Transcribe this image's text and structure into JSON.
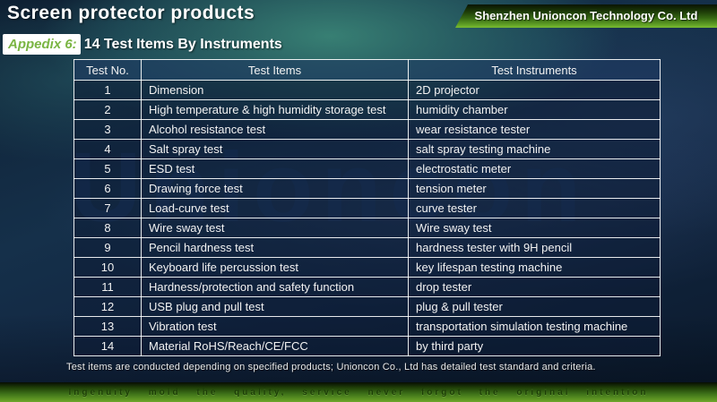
{
  "slide": {
    "title": "Screen protector products",
    "company_banner": "Shenzhen Unioncon Technology Co. Ltd",
    "appendix_label": "Appedix 6:",
    "section_title": "14 Test Items By Instruments",
    "watermark": "Unioncon",
    "note": "Test items are conducted depending on specified products; Unioncon Co., Ltd has detailed test standard and criteria.",
    "footer_slogan": "Ingenuity mold the quality, service never forgot the original intention"
  },
  "table": {
    "headers": [
      "Test No.",
      "Test Items",
      "Test Instruments"
    ],
    "rows": [
      [
        "1",
        "Dimension",
        "2D projector"
      ],
      [
        "2",
        "High temperature & high humidity storage test",
        "humidity chamber"
      ],
      [
        "3",
        "Alcohol resistance test",
        "wear resistance tester"
      ],
      [
        "4",
        "Salt spray test",
        "salt spray testing machine"
      ],
      [
        "5",
        "ESD test",
        "electrostatic meter"
      ],
      [
        "6",
        "Drawing force test",
        "tension meter"
      ],
      [
        "7",
        "Load-curve test",
        "curve tester"
      ],
      [
        "8",
        "Wire sway test",
        "Wire sway test"
      ],
      [
        "9",
        "Pencil hardness test",
        "hardness tester with 9H pencil"
      ],
      [
        "10",
        "Keyboard life percussion test",
        "key lifespan testing machine"
      ],
      [
        "11",
        "Hardness/protection and safety function",
        "drop tester"
      ],
      [
        "12",
        "USB plug and pull test",
        "plug & pull tester"
      ],
      [
        "13",
        "Vibration test",
        "transportation simulation testing machine"
      ],
      [
        "14",
        "Material RoHS/Reach/CE/FCC",
        "by third party"
      ]
    ]
  },
  "colors": {
    "accent_green": "#79bc31",
    "appendix_text_green": "#7ab543",
    "cell_background": "rgba(13,28,52,0.55)",
    "table_border": "#ffffff",
    "watermark_blue": "rgba(30,62,110,0.55)"
  }
}
